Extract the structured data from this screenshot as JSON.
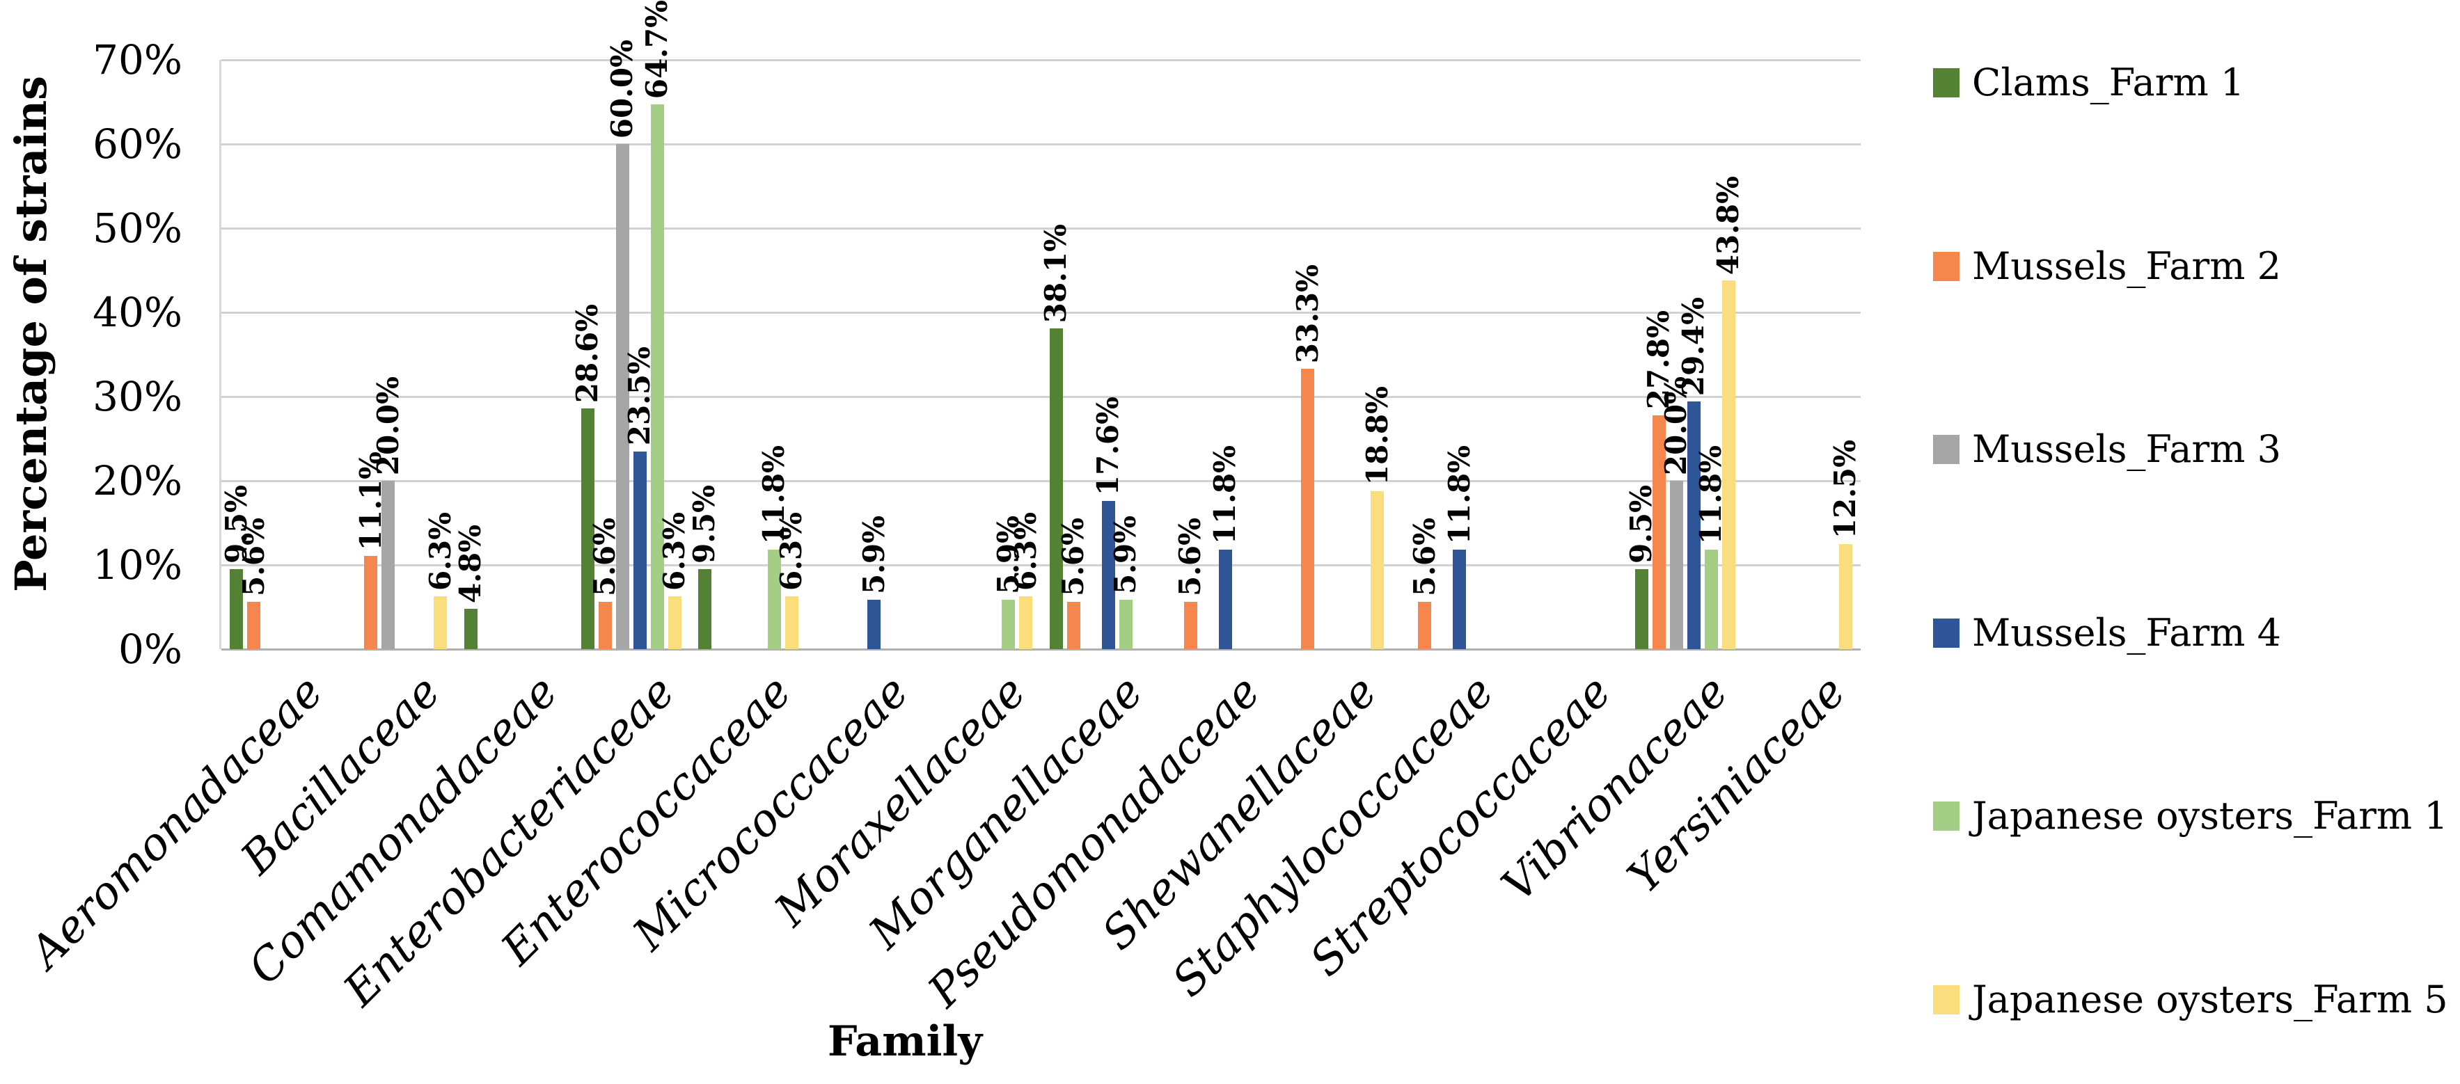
{
  "chart_data": {
    "type": "bar",
    "title": "",
    "xlabel": "Family",
    "ylabel": "Percentage of strains",
    "ylim": [
      0,
      70
    ],
    "grid": true,
    "legend_position": "right",
    "y_ticks": [
      {
        "label": "70%",
        "value": 70
      },
      {
        "label": "60%",
        "value": 60
      },
      {
        "label": "50%",
        "value": 50
      },
      {
        "label": "40%",
        "value": 40
      },
      {
        "label": "30%",
        "value": 30
      },
      {
        "label": "20%",
        "value": 20
      },
      {
        "label": "10%",
        "value": 10
      },
      {
        "label": "0%",
        "value": 0
      }
    ],
    "categories": [
      "Aeromonadaceae",
      "Bacillaceae",
      "Comamonadaceae",
      "Enterobacteriaceae",
      "Enterococcaceae",
      "Micrococcaceae",
      "Moraxellaceae",
      "Morganellaceae",
      "Pseudomonadaceae",
      "Shewanellaceae",
      "Staphylococcaceae",
      "Streptococcaceae",
      "Vibrionaceae",
      "Yersiniaceae"
    ],
    "value_suffix": "%",
    "series": [
      {
        "name": "Clams_Farm 1",
        "color": "#548235",
        "values": [
          9.5,
          null,
          4.8,
          28.6,
          9.5,
          null,
          null,
          38.1,
          null,
          null,
          null,
          null,
          9.5,
          null
        ]
      },
      {
        "name": "Mussels_Farm 2",
        "color": "#F5874E",
        "values": [
          5.6,
          11.1,
          null,
          5.6,
          null,
          null,
          null,
          5.6,
          5.6,
          33.3,
          5.6,
          null,
          27.8,
          null
        ]
      },
      {
        "name": "Mussels_Farm 3",
        "color": "#A6A6A6",
        "values": [
          null,
          20.0,
          null,
          60.0,
          null,
          null,
          null,
          null,
          null,
          null,
          null,
          null,
          20.0,
          null
        ]
      },
      {
        "name": "Mussels_Farm 4",
        "color": "#2F5597",
        "values": [
          null,
          null,
          null,
          23.5,
          null,
          5.9,
          null,
          17.6,
          11.8,
          null,
          11.8,
          null,
          29.4,
          null
        ]
      },
      {
        "name": "Japanese oysters_Farm 1",
        "color": "#A4CE86",
        "values": [
          null,
          null,
          null,
          64.7,
          11.8,
          null,
          5.9,
          5.9,
          null,
          null,
          null,
          null,
          11.8,
          null
        ]
      },
      {
        "name": "Japanese oysters_Farm 5",
        "color": "#FADD7D",
        "values": [
          null,
          6.3,
          null,
          6.3,
          6.3,
          null,
          6.3,
          null,
          null,
          18.8,
          null,
          null,
          43.8,
          12.5
        ]
      }
    ]
  }
}
